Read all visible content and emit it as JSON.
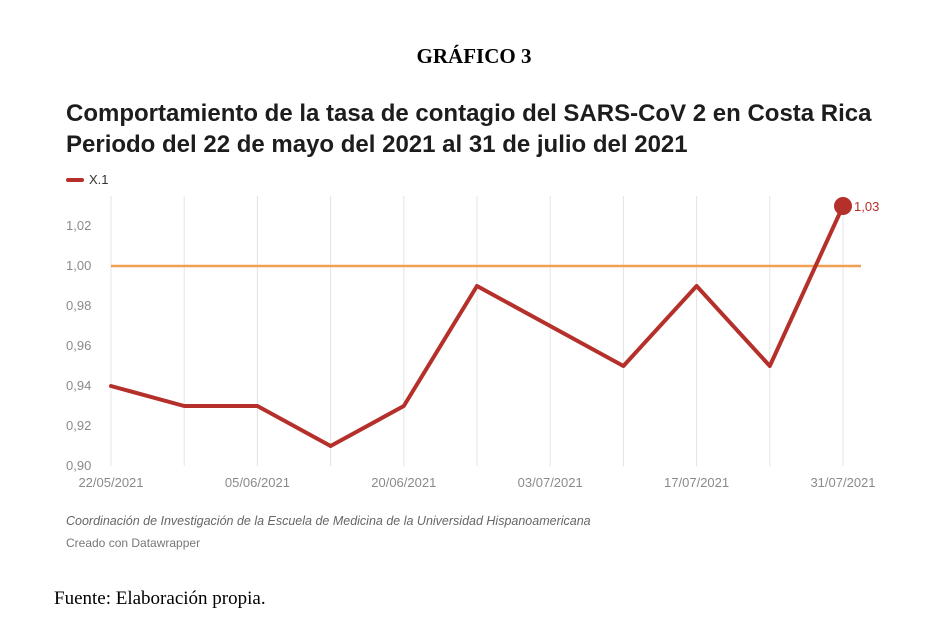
{
  "header": {
    "figure_label": "GRÁFICO 3"
  },
  "chart_data": {
    "type": "line",
    "title": "Comportamiento de la tasa de contagio del SARS-CoV 2 en Costa Rica",
    "subtitle": "Periodo del 22 de mayo del 2021 al 31 de julio del 2021",
    "x_tick_labels": [
      "22/05/2021",
      "05/06/2021",
      "20/06/2021",
      "03/07/2021",
      "17/07/2021",
      "31/07/2021"
    ],
    "y_ticks": [
      "0,90",
      "0,92",
      "0,94",
      "0,96",
      "0,98",
      "1,00",
      "1,02"
    ],
    "ylim": [
      0.9,
      1.035
    ],
    "series": [
      {
        "name": "X.1",
        "color": "#b5302a",
        "values": [
          0.94,
          0.93,
          0.93,
          0.91,
          0.93,
          0.99,
          0.97,
          0.95,
          0.99,
          0.95,
          1.03
        ],
        "end_label": "1,03"
      }
    ],
    "reference_line": {
      "value": 1.0,
      "color": "#f0a050"
    },
    "grid": "vertical",
    "legend": "top-left"
  },
  "footer": {
    "source": "Coordinación de Investigación de la Escuela de Medicina de la Universidad Hispanoamericana",
    "credit": "Creado con Datawrapper",
    "fuente": "Fuente: Elaboración propia."
  }
}
